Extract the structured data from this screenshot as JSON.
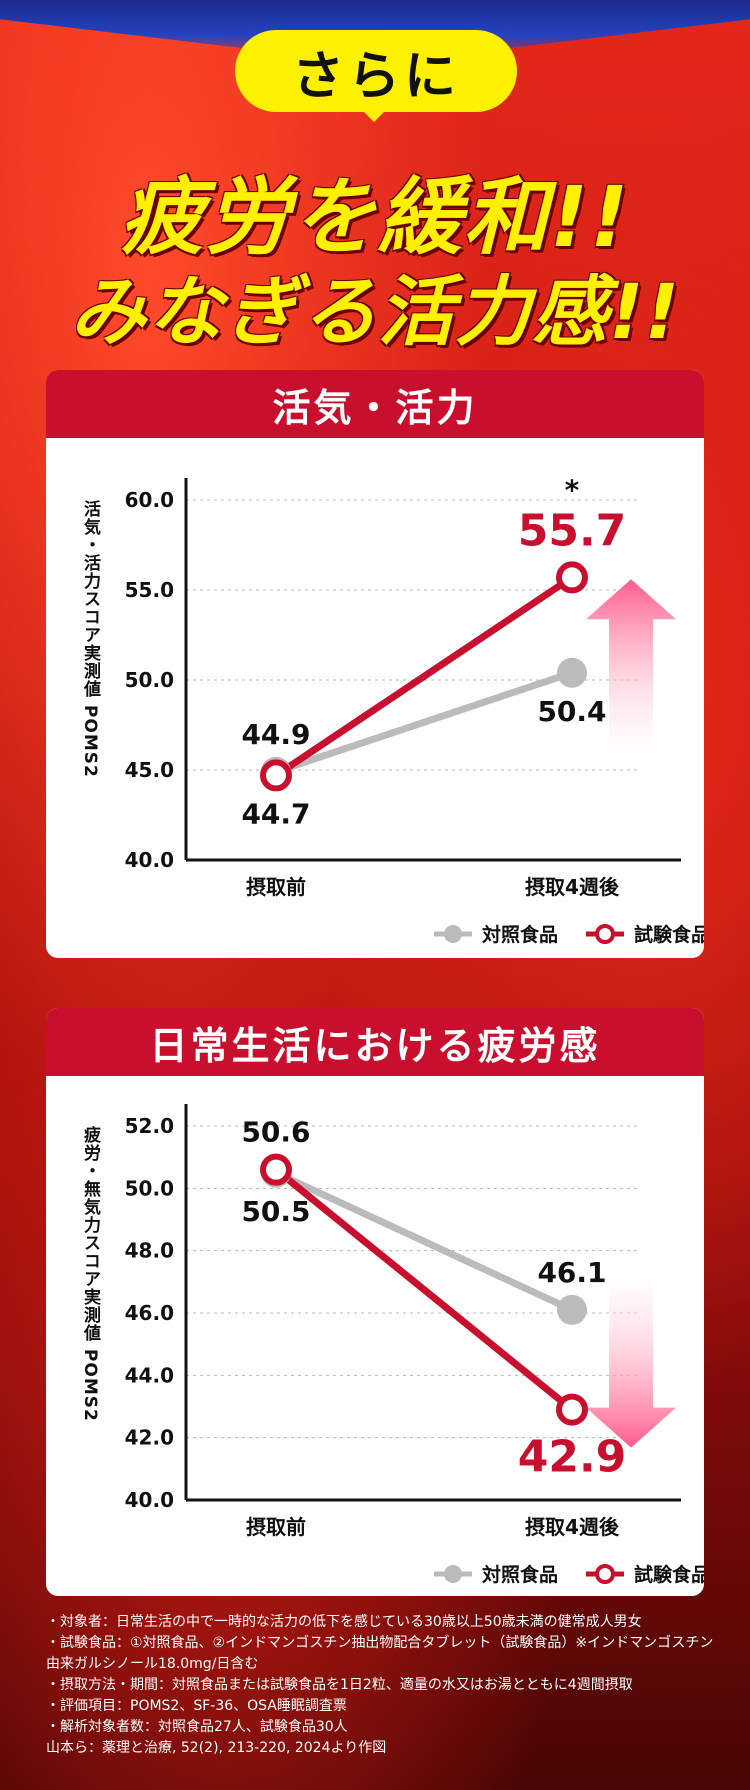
{
  "header": {
    "bubble": "さらに",
    "headline1": "疲労を緩和!!",
    "headline2": "みなぎる活力感!!"
  },
  "colors": {
    "control": "#bbbbbb",
    "test": "#c8102e",
    "arrow_pink": "#ff5c8d",
    "bg_red": "#c81812",
    "yellow": "#ffef00"
  },
  "chart_data": [
    {
      "type": "line",
      "title": "活気・活力",
      "ylabel": "活気・活力スコア実測値 POMS2",
      "categories": [
        "摂取前",
        "摂取4週後"
      ],
      "ylim": [
        40.0,
        60.0
      ],
      "yticks": [
        "60.0",
        "55.0",
        "50.0",
        "45.0",
        "40.0"
      ],
      "series": [
        {
          "name": "対照食品",
          "values": [
            44.9,
            50.4
          ],
          "labels": [
            "44.9",
            "50.4"
          ]
        },
        {
          "name": "試験食品",
          "values": [
            44.7,
            55.7
          ],
          "labels": [
            "44.7",
            "55.7"
          ]
        }
      ],
      "significance": "*",
      "arrow": "up",
      "legend_position": "bottom-right",
      "grid": true
    },
    {
      "type": "line",
      "title": "日常生活における疲労感",
      "ylabel": "疲労・無気力スコア実測値 POMS2",
      "categories": [
        "摂取前",
        "摂取4週後"
      ],
      "ylim": [
        40.0,
        52.0
      ],
      "yticks": [
        "52.0",
        "50.0",
        "48.0",
        "46.0",
        "44.0",
        "42.0",
        "40.0"
      ],
      "series": [
        {
          "name": "対照食品",
          "values": [
            50.5,
            46.1
          ],
          "labels": [
            "50.5",
            "46.1"
          ]
        },
        {
          "name": "試験食品",
          "values": [
            50.6,
            42.9
          ],
          "labels": [
            "50.6",
            "42.9"
          ]
        }
      ],
      "arrow": "down",
      "legend_position": "bottom-right",
      "grid": true
    }
  ],
  "notes": [
    "・対象者：日常生活の中で一時的な活力の低下を感じている30歳以上50歳未満の健常成人男女",
    "・試験食品：①対照食品、②インドマンゴスチン抽出物配合タブレット（試験食品）※インドマンゴスチン",
    "由来ガルシノール18.0mg/日含む",
    "・摂取方法・期間：対照食品または試験食品を1日2粒、適量の水又はお湯とともに4週間摂取",
    "・評価項目：POMS2、SF-36、OSA睡眠調査票",
    "・解析対象者数：対照食品27人、試験食品30人",
    "山本ら：薬理と治療, 52(2), 213-220, 2024より作図"
  ]
}
